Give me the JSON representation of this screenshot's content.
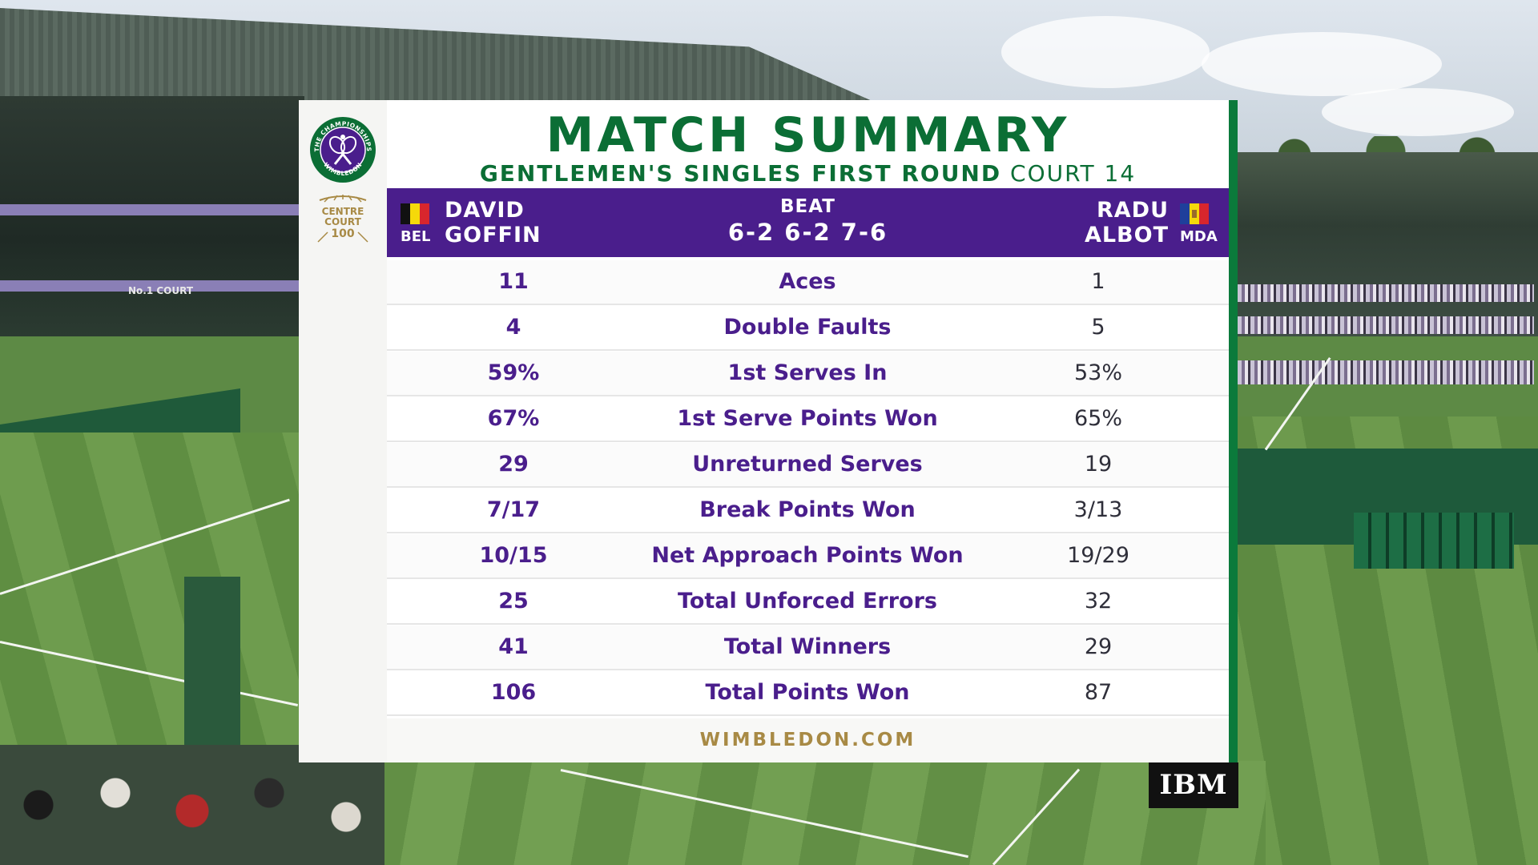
{
  "title": "MATCH SUMMARY",
  "subtitle": {
    "round": "GENTLEMEN'S SINGLES FIRST ROUND",
    "court": "COURT 14"
  },
  "logo_text": {
    "top": "THE CHAMPIONSHIPS",
    "bottom": "WIMBLEDON"
  },
  "centre_court": {
    "line1": "CENTRE",
    "line2": "COURT",
    "line3": "100"
  },
  "player1": {
    "first": "DAVID",
    "last": "GOFFIN",
    "country": "BEL",
    "flag_colors": [
      "#111111",
      "#f5d90a",
      "#d8262d"
    ]
  },
  "player2": {
    "first": "RADU",
    "last": "ALBOT",
    "country": "MDA",
    "flag_colors": [
      "#1f3f9b",
      "#f5d90a",
      "#d8262d"
    ]
  },
  "result": {
    "label": "BEAT",
    "score": "6-2 6-2 7-6"
  },
  "stats": [
    {
      "label": "Aces",
      "p1": "11",
      "p2": "1"
    },
    {
      "label": "Double Faults",
      "p1": "4",
      "p2": "5"
    },
    {
      "label": "1st Serves In",
      "p1": "59%",
      "p2": "53%"
    },
    {
      "label": "1st Serve Points Won",
      "p1": "67%",
      "p2": "65%"
    },
    {
      "label": "Unreturned Serves",
      "p1": "29",
      "p2": "19"
    },
    {
      "label": "Break Points Won",
      "p1": "7/17",
      "p2": "3/13"
    },
    {
      "label": "Net Approach Points Won",
      "p1": "10/15",
      "p2": "19/29"
    },
    {
      "label": "Total Unforced Errors",
      "p1": "25",
      "p2": "32"
    },
    {
      "label": "Total Winners",
      "p1": "41",
      "p2": "29"
    },
    {
      "label": "Total Points Won",
      "p1": "106",
      "p2": "87"
    }
  ],
  "footer": "WIMBLEDON.COM",
  "sponsor": "IBM",
  "background_sign": "No.1 COURT",
  "colors": {
    "purple": "#4a1e8c",
    "green": "#0b6e35",
    "gold": "#a88a45"
  }
}
